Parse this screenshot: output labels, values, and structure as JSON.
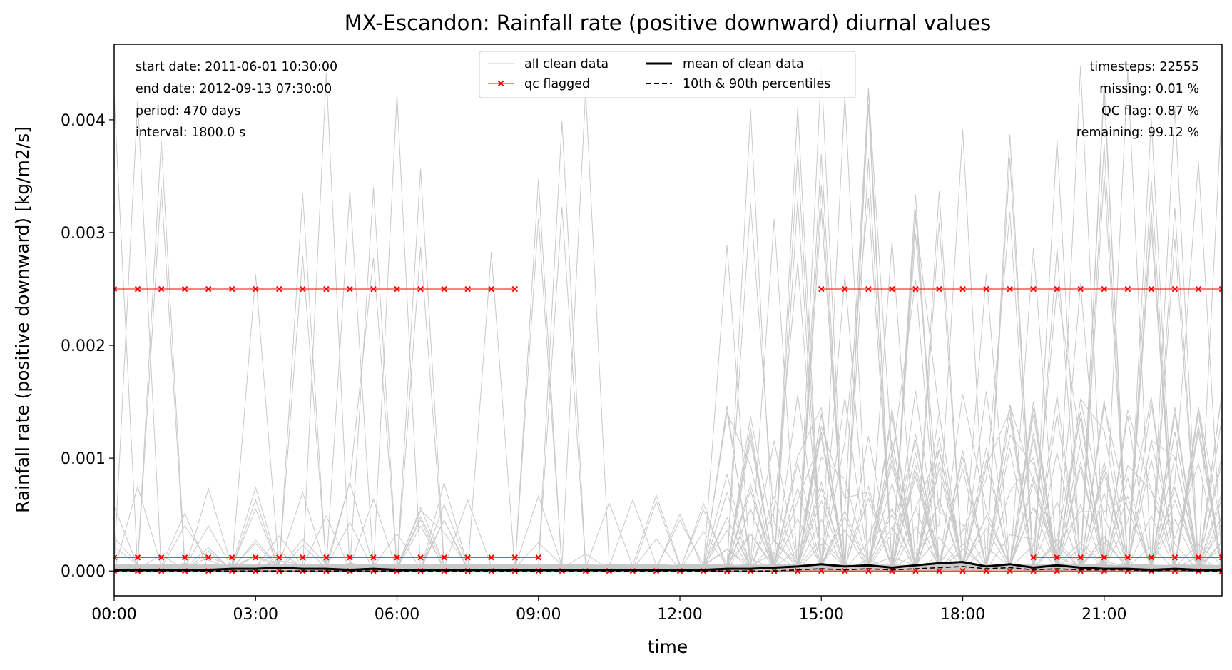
{
  "chart_data": {
    "type": "line",
    "title": "MX-Escandon: Rainfall rate (positive downward) diurnal values",
    "xlabel": "time",
    "ylabel": "Rainfall rate (positive downward) [kg/m2/s]",
    "xlim": [
      0,
      23.5
    ],
    "ylim": [
      -0.00022,
      0.00467
    ],
    "x_ticks": [
      "00:00",
      "03:00",
      "06:00",
      "09:00",
      "12:00",
      "15:00",
      "18:00",
      "21:00"
    ],
    "y_ticks": [
      "0.000",
      "0.001",
      "0.002",
      "0.003",
      "0.004"
    ],
    "grid": false,
    "legend": {
      "placement": "top-center",
      "entries": [
        "all clean data",
        "qc flagged",
        "mean of clean data",
        "10th & 90th percentiles"
      ]
    },
    "colors": {
      "clean": "#c8c8c8",
      "qc": "#ff0000",
      "mean": "#000000",
      "percentile": "#000000"
    },
    "info_left": [
      "start date: 2011-06-01 10:30:00",
      "end date: 2012-09-13 07:30:00",
      "period: 470 days",
      "interval: 1800.0 s"
    ],
    "info_right": [
      "timesteps: 22555",
      "missing: 0.01 %",
      "QC flag: 0.87 %",
      "remaining: 99.12 %"
    ],
    "x": [
      0,
      0.5,
      1,
      1.5,
      2,
      2.5,
      3,
      3.5,
      4,
      4.5,
      5,
      5.5,
      6,
      6.5,
      7,
      7.5,
      8,
      8.5,
      9,
      9.5,
      10,
      10.5,
      11,
      11.5,
      12,
      12.5,
      13,
      13.5,
      14,
      14.5,
      15,
      15.5,
      16,
      16.5,
      17,
      17.5,
      18,
      18.5,
      19,
      19.5,
      20,
      20.5,
      21,
      21.5,
      22,
      22.5,
      23,
      23.5
    ],
    "series": [
      {
        "name": "mean of clean data",
        "values": [
          1e-05,
          1e-05,
          1e-05,
          1e-05,
          1e-05,
          2e-05,
          2e-05,
          3e-05,
          2e-05,
          2e-05,
          1e-05,
          2e-05,
          1e-05,
          1e-05,
          1e-05,
          1e-05,
          1e-05,
          1e-05,
          1e-05,
          1e-05,
          1e-05,
          1e-05,
          1e-05,
          1e-05,
          1e-05,
          1e-05,
          2e-05,
          2e-05,
          3e-05,
          4e-05,
          6e-05,
          4e-05,
          5e-05,
          3e-05,
          5e-05,
          7e-05,
          8e-05,
          4e-05,
          6e-05,
          3e-05,
          5e-05,
          3e-05,
          2e-05,
          2e-05,
          1e-05,
          2e-05,
          1e-05,
          1e-05
        ]
      },
      {
        "name": "10th & 90th percentiles",
        "values": [
          0,
          0,
          0,
          0,
          0,
          0,
          0,
          0,
          0,
          0,
          0,
          0,
          0,
          0,
          0,
          0,
          0,
          0,
          0,
          0,
          0,
          0,
          0,
          0,
          0,
          0,
          0,
          0,
          0,
          1e-05,
          2e-05,
          1e-05,
          2e-05,
          1e-05,
          2e-05,
          3e-05,
          4e-05,
          2e-05,
          3e-05,
          1e-05,
          2e-05,
          1e-05,
          1e-05,
          1e-05,
          0,
          1e-05,
          0,
          0
        ]
      },
      {
        "name": "qc flagged",
        "segments": [
          {
            "y": 0.0025,
            "x_start": 0,
            "x_end": 8.5
          },
          {
            "y": 0.0025,
            "x_start": 15,
            "x_end": 23.5
          },
          {
            "y": 0.00012,
            "x_start": 0,
            "x_end": 9
          },
          {
            "y": 0.00012,
            "x_start": 19.5,
            "x_end": 23.5
          },
          {
            "y": 0.0,
            "x_start": 0,
            "x_end": 23.5
          }
        ]
      }
    ]
  }
}
